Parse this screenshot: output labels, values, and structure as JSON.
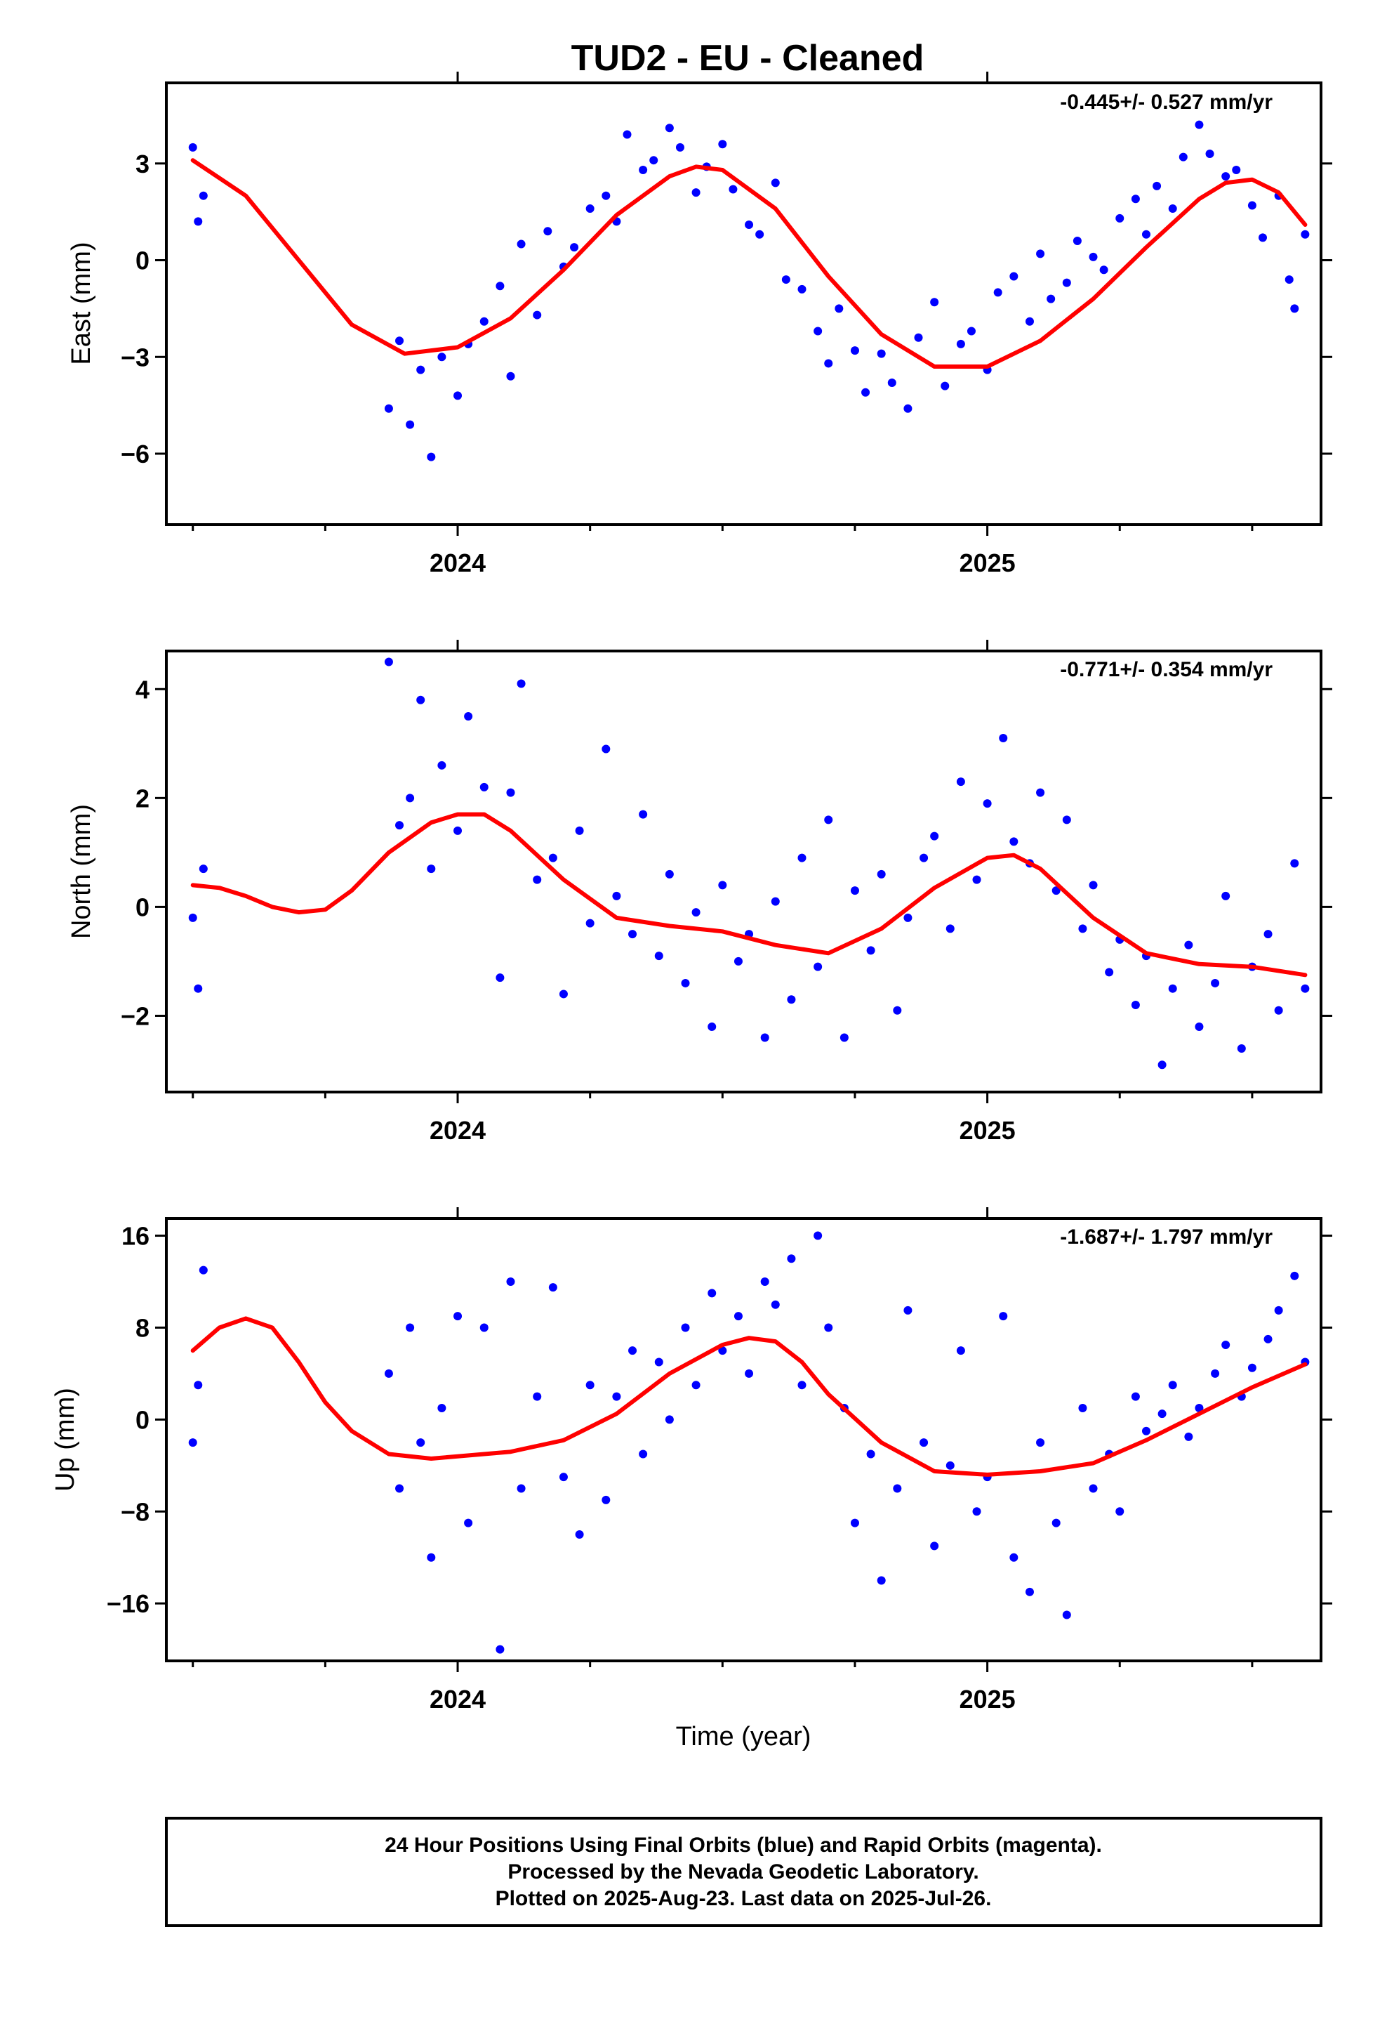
{
  "title": "TUD2  - EU - Cleaned",
  "x_axis_label": "Time (year)",
  "footer": {
    "lines": [
      "24 Hour Positions Using Final Orbits (blue) and Rapid Orbits (magenta).",
      "Processed by the Nevada Geodetic Laboratory.",
      "Plotted on 2025-Aug-23. Last data on 2025-Jul-26."
    ]
  },
  "colors": {
    "points": "#0000ff",
    "fit": "#ff0000",
    "axis": "#000000"
  },
  "chart_data": [
    {
      "type": "scatter",
      "ylabel": "East (mm)",
      "rate_text": "-0.445+/- 0.527 mm/yr",
      "xlim": [
        2023.45,
        2025.63
      ],
      "ylim": [
        -8.2,
        5.5
      ],
      "yticks": [
        -6,
        -3,
        0,
        3
      ],
      "ytick_labels": [
        "−6",
        "−3",
        "0",
        "3"
      ],
      "xticks_major": [
        2024,
        2025
      ],
      "xtick_labels": [
        "2024",
        "2025"
      ],
      "xticks_minor": [
        2023.5,
        2023.75,
        2024.25,
        2024.5,
        2024.75,
        2025.25,
        2025.5
      ],
      "fit": {
        "x": [
          2023.5,
          2023.6,
          2023.7,
          2023.8,
          2023.9,
          2024.0,
          2024.1,
          2024.2,
          2024.3,
          2024.4,
          2024.45,
          2024.5,
          2024.6,
          2024.7,
          2024.8,
          2024.9,
          2025.0,
          2025.1,
          2025.2,
          2025.3,
          2025.4,
          2025.45,
          2025.5,
          2025.55,
          2025.6
        ],
        "y": [
          3.1,
          2.0,
          0.0,
          -2.0,
          -2.9,
          -2.7,
          -1.8,
          -0.3,
          1.4,
          2.6,
          2.9,
          2.8,
          1.6,
          -0.5,
          -2.3,
          -3.3,
          -3.3,
          -2.5,
          -1.2,
          0.4,
          1.9,
          2.4,
          2.5,
          2.1,
          1.1
        ]
      },
      "series": [
        {
          "name": "Final Orbits",
          "x": [
            2023.5,
            2023.51,
            2023.52,
            2023.87,
            2023.89,
            2023.91,
            2023.93,
            2023.95,
            2023.97,
            2024.0,
            2024.02,
            2024.05,
            2024.08,
            2024.1,
            2024.12,
            2024.15,
            2024.17,
            2024.2,
            2024.22,
            2024.25,
            2024.28,
            2024.3,
            2024.32,
            2024.35,
            2024.37,
            2024.4,
            2024.42,
            2024.45,
            2024.47,
            2024.5,
            2024.52,
            2024.55,
            2024.57,
            2024.6,
            2024.62,
            2024.65,
            2024.68,
            2024.7,
            2024.72,
            2024.75,
            2024.77,
            2024.8,
            2024.82,
            2024.85,
            2024.87,
            2024.9,
            2024.92,
            2024.95,
            2024.97,
            2025.0,
            2025.02,
            2025.05,
            2025.08,
            2025.1,
            2025.12,
            2025.15,
            2025.17,
            2025.2,
            2025.22,
            2025.25,
            2025.28,
            2025.3,
            2025.32,
            2025.35,
            2025.37,
            2025.4,
            2025.42,
            2025.45,
            2025.47,
            2025.5,
            2025.52,
            2025.55,
            2025.57,
            2025.58,
            2025.6
          ],
          "y": [
            3.5,
            1.2,
            2.0,
            -4.6,
            -2.5,
            -5.1,
            -3.4,
            -6.1,
            -3.0,
            -4.2,
            -2.6,
            -1.9,
            -0.8,
            -3.6,
            0.5,
            -1.7,
            0.9,
            -0.2,
            0.4,
            1.6,
            2.0,
            1.2,
            3.9,
            2.8,
            3.1,
            4.1,
            3.5,
            2.1,
            2.9,
            3.6,
            2.2,
            1.1,
            0.8,
            2.4,
            -0.6,
            -0.9,
            -2.2,
            -3.2,
            -1.5,
            -2.8,
            -4.1,
            -2.9,
            -3.8,
            -4.6,
            -2.4,
            -1.3,
            -3.9,
            -2.6,
            -2.2,
            -3.4,
            -1.0,
            -0.5,
            -1.9,
            0.2,
            -1.2,
            -0.7,
            0.6,
            0.1,
            -0.3,
            1.3,
            1.9,
            0.8,
            2.3,
            1.6,
            3.2,
            4.2,
            3.3,
            2.6,
            2.8,
            1.7,
            0.7,
            2.0,
            -0.6,
            -1.5,
            0.8
          ]
        }
      ]
    },
    {
      "type": "scatter",
      "ylabel": "North (mm)",
      "rate_text": "-0.771+/- 0.354 mm/yr",
      "xlim": [
        2023.45,
        2025.63
      ],
      "ylim": [
        -3.4,
        4.7
      ],
      "yticks": [
        -2,
        0,
        2,
        4
      ],
      "ytick_labels": [
        "−2",
        "0",
        "2",
        "4"
      ],
      "xticks_major": [
        2024,
        2025
      ],
      "xtick_labels": [
        "2024",
        "2025"
      ],
      "xticks_minor": [
        2023.5,
        2023.75,
        2024.25,
        2024.5,
        2024.75,
        2025.25,
        2025.5
      ],
      "fit": {
        "x": [
          2023.5,
          2023.55,
          2023.6,
          2023.65,
          2023.7,
          2023.75,
          2023.8,
          2023.87,
          2023.95,
          2024.0,
          2024.05,
          2024.1,
          2024.2,
          2024.3,
          2024.4,
          2024.5,
          2024.6,
          2024.7,
          2024.8,
          2024.9,
          2025.0,
          2025.05,
          2025.1,
          2025.2,
          2025.3,
          2025.4,
          2025.5,
          2025.6
        ],
        "y": [
          0.4,
          0.35,
          0.2,
          0.0,
          -0.1,
          -0.05,
          0.3,
          1.0,
          1.55,
          1.7,
          1.7,
          1.4,
          0.5,
          -0.2,
          -0.35,
          -0.45,
          -0.7,
          -0.85,
          -0.4,
          0.35,
          0.9,
          0.95,
          0.7,
          -0.2,
          -0.85,
          -1.05,
          -1.1,
          -1.25
        ]
      },
      "series": [
        {
          "name": "Final Orbits",
          "x": [
            2023.5,
            2023.51,
            2023.52,
            2023.87,
            2023.89,
            2023.91,
            2023.93,
            2023.95,
            2023.97,
            2024.0,
            2024.02,
            2024.05,
            2024.08,
            2024.1,
            2024.12,
            2024.15,
            2024.18,
            2024.2,
            2024.23,
            2024.25,
            2024.28,
            2024.3,
            2024.33,
            2024.35,
            2024.38,
            2024.4,
            2024.43,
            2024.45,
            2024.48,
            2024.5,
            2024.53,
            2024.55,
            2024.58,
            2024.6,
            2024.63,
            2024.65,
            2024.68,
            2024.7,
            2024.73,
            2024.75,
            2024.78,
            2024.8,
            2024.83,
            2024.85,
            2024.88,
            2024.9,
            2024.93,
            2024.95,
            2024.98,
            2025.0,
            2025.03,
            2025.05,
            2025.08,
            2025.1,
            2025.13,
            2025.15,
            2025.18,
            2025.2,
            2025.23,
            2025.25,
            2025.28,
            2025.3,
            2025.33,
            2025.35,
            2025.38,
            2025.4,
            2025.43,
            2025.45,
            2025.48,
            2025.5,
            2025.53,
            2025.55,
            2025.58,
            2025.6
          ],
          "y": [
            -0.2,
            -1.5,
            0.7,
            4.5,
            1.5,
            2.0,
            3.8,
            0.7,
            2.6,
            1.4,
            3.5,
            2.2,
            -1.3,
            2.1,
            4.1,
            0.5,
            0.9,
            -1.6,
            1.4,
            -0.3,
            2.9,
            0.2,
            -0.5,
            1.7,
            -0.9,
            0.6,
            -1.4,
            -0.1,
            -2.2,
            0.4,
            -1.0,
            -0.5,
            -2.4,
            0.1,
            -1.7,
            0.9,
            -1.1,
            1.6,
            -2.4,
            0.3,
            -0.8,
            0.6,
            -1.9,
            -0.2,
            0.9,
            1.3,
            -0.4,
            2.3,
            0.5,
            1.9,
            3.1,
            1.2,
            0.8,
            2.1,
            0.3,
            1.6,
            -0.4,
            0.4,
            -1.2,
            -0.6,
            -1.8,
            -0.9,
            -2.9,
            -1.5,
            -0.7,
            -2.2,
            -1.4,
            0.2,
            -2.6,
            -1.1,
            -0.5,
            -1.9,
            0.8,
            -1.5
          ]
        }
      ]
    },
    {
      "type": "scatter",
      "ylabel": "Up (mm)",
      "rate_text": "-1.687+/- 1.797 mm/yr",
      "xlim": [
        2023.45,
        2025.63
      ],
      "ylim": [
        -21,
        17.5
      ],
      "yticks": [
        -16,
        -8,
        0,
        8,
        16
      ],
      "ytick_labels": [
        "−16",
        "−8",
        "0",
        "8",
        "16"
      ],
      "xticks_major": [
        2024,
        2025
      ],
      "xtick_labels": [
        "2024",
        "2025"
      ],
      "xticks_minor": [
        2023.5,
        2023.75,
        2024.25,
        2024.5,
        2024.75,
        2025.25,
        2025.5
      ],
      "fit": {
        "x": [
          2023.5,
          2023.55,
          2023.6,
          2023.65,
          2023.7,
          2023.75,
          2023.8,
          2023.87,
          2023.95,
          2024.0,
          2024.1,
          2024.2,
          2024.3,
          2024.4,
          2024.5,
          2024.55,
          2024.6,
          2024.65,
          2024.7,
          2024.8,
          2024.9,
          2025.0,
          2025.1,
          2025.2,
          2025.3,
          2025.4,
          2025.5,
          2025.6
        ],
        "y": [
          6.0,
          8.0,
          8.8,
          8.0,
          5.0,
          1.5,
          -1.0,
          -3.0,
          -3.4,
          -3.2,
          -2.8,
          -1.8,
          0.5,
          4.0,
          6.5,
          7.1,
          6.8,
          5.0,
          2.2,
          -2.0,
          -4.5,
          -4.8,
          -4.5,
          -3.8,
          -1.8,
          0.5,
          2.8,
          4.8
        ]
      },
      "series": [
        {
          "name": "Final Orbits",
          "x": [
            2023.5,
            2023.51,
            2023.52,
            2023.87,
            2023.89,
            2023.91,
            2023.93,
            2023.95,
            2023.97,
            2024.0,
            2024.02,
            2024.05,
            2024.08,
            2024.1,
            2024.12,
            2024.15,
            2024.18,
            2024.2,
            2024.23,
            2024.25,
            2024.28,
            2024.3,
            2024.33,
            2024.35,
            2024.38,
            2024.4,
            2024.43,
            2024.45,
            2024.48,
            2024.5,
            2024.53,
            2024.55,
            2024.58,
            2024.6,
            2024.63,
            2024.65,
            2024.68,
            2024.7,
            2024.73,
            2024.75,
            2024.78,
            2024.8,
            2024.83,
            2024.85,
            2024.88,
            2024.9,
            2024.93,
            2024.95,
            2024.98,
            2025.0,
            2025.03,
            2025.05,
            2025.08,
            2025.1,
            2025.13,
            2025.15,
            2025.18,
            2025.2,
            2025.23,
            2025.25,
            2025.28,
            2025.3,
            2025.33,
            2025.35,
            2025.38,
            2025.4,
            2025.43,
            2025.45,
            2025.48,
            2025.5,
            2025.53,
            2025.55,
            2025.58,
            2025.6
          ],
          "y": [
            -2.0,
            3.0,
            13.0,
            4.0,
            -6.0,
            8.0,
            -2.0,
            -12.0,
            1.0,
            9.0,
            -9.0,
            8.0,
            -20.0,
            12.0,
            -6.0,
            2.0,
            11.5,
            -5.0,
            -10.0,
            3.0,
            -7.0,
            2.0,
            6.0,
            -3.0,
            5.0,
            0.0,
            8.0,
            3.0,
            11.0,
            6.0,
            9.0,
            4.0,
            12.0,
            10.0,
            14.0,
            3.0,
            16.0,
            8.0,
            1.0,
            -9.0,
            -3.0,
            -14.0,
            -6.0,
            9.5,
            -2.0,
            -11.0,
            -4.0,
            6.0,
            -8.0,
            -5.0,
            9.0,
            -12.0,
            -15.0,
            -2.0,
            -9.0,
            -17.0,
            1.0,
            -6.0,
            -3.0,
            -8.0,
            2.0,
            -1.0,
            0.5,
            3.0,
            -1.5,
            1.0,
            4.0,
            6.5,
            2.0,
            4.5,
            7.0,
            9.5,
            12.5,
            5.0
          ]
        }
      ]
    }
  ]
}
